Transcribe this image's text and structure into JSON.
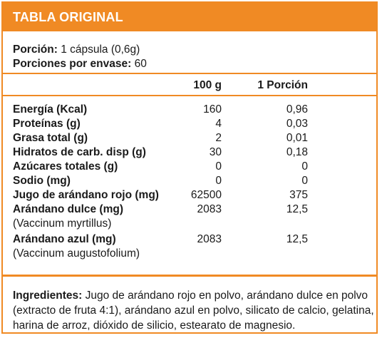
{
  "title": "TABLA ORIGINAL",
  "serving": {
    "label": "Porción:",
    "value": "1 cápsula (0,6g)"
  },
  "servings_per_container": {
    "label": "Porciones por envase:",
    "value": "60"
  },
  "columns": {
    "per_100g": "100 g",
    "per_serving": "1 Porción"
  },
  "rows": [
    {
      "name": "Energía (Kcal)",
      "per_100g": "160",
      "per_serving": "0,96"
    },
    {
      "name": "Proteínas (g)",
      "per_100g": "4",
      "per_serving": "0,03"
    },
    {
      "name": "Grasa total (g)",
      "per_100g": "2",
      "per_serving": "0,01"
    },
    {
      "name": "Hidratos de carb. disp (g)",
      "per_100g": "30",
      "per_serving": "0,18"
    },
    {
      "name": "Azúcares totales (g)",
      "per_100g": "0",
      "per_serving": "0"
    },
    {
      "name": "Sodio (mg)",
      "per_100g": "0",
      "per_serving": "0"
    },
    {
      "name": "Jugo de arándano rojo (mg)",
      "per_100g": "62500",
      "per_serving": "375"
    },
    {
      "name": "Arándano dulce (mg)",
      "sub": "(Vaccinum myrtillus)",
      "per_100g": "2083",
      "per_serving": "12,5"
    },
    {
      "name": "Arándano azul (mg)",
      "sub": "(Vaccinum augustofolium)",
      "per_100g": "2083",
      "per_serving": "12,5"
    }
  ],
  "ingredients": {
    "label": "Ingredientes:",
    "text": "Jugo de arándano rojo en polvo, arándano dulce en polvo (extracto de fruta 4:1), arándano azul en polvo, silicato de calcio, gelatina, harina de arroz, dióxido de silicio, estearato de magnesio."
  },
  "colors": {
    "accent": "#f08a24",
    "text": "#1a1a1a"
  }
}
